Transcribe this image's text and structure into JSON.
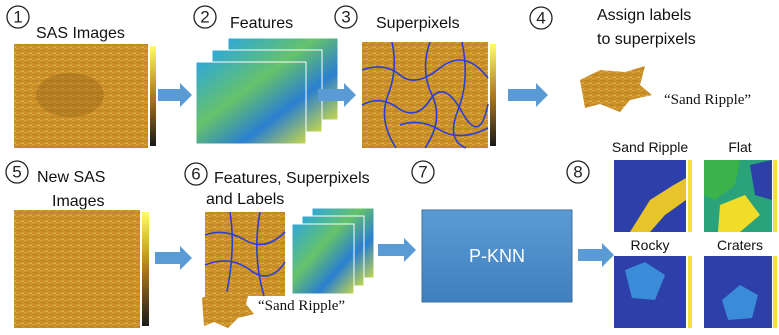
{
  "steps": [
    {
      "number": "1",
      "title": [
        "SAS Images"
      ]
    },
    {
      "number": "2",
      "title": [
        "Features"
      ]
    },
    {
      "number": "3",
      "title": [
        "Superpixels"
      ]
    },
    {
      "number": "4",
      "title": [
        "Assign labels",
        "to superpixels"
      ],
      "example_label": "“Sand Ripple”"
    },
    {
      "number": "5",
      "title": [
        "New SAS",
        "Images"
      ]
    },
    {
      "number": "6",
      "title": [
        "Features, Superpixels",
        "and Labels"
      ],
      "example_label": "“Sand Ripple”"
    },
    {
      "number": "7",
      "model": "P-KNN"
    },
    {
      "number": "8",
      "classes": [
        "Sand Ripple",
        "Flat",
        "Rocky",
        "Craters"
      ]
    }
  ]
}
